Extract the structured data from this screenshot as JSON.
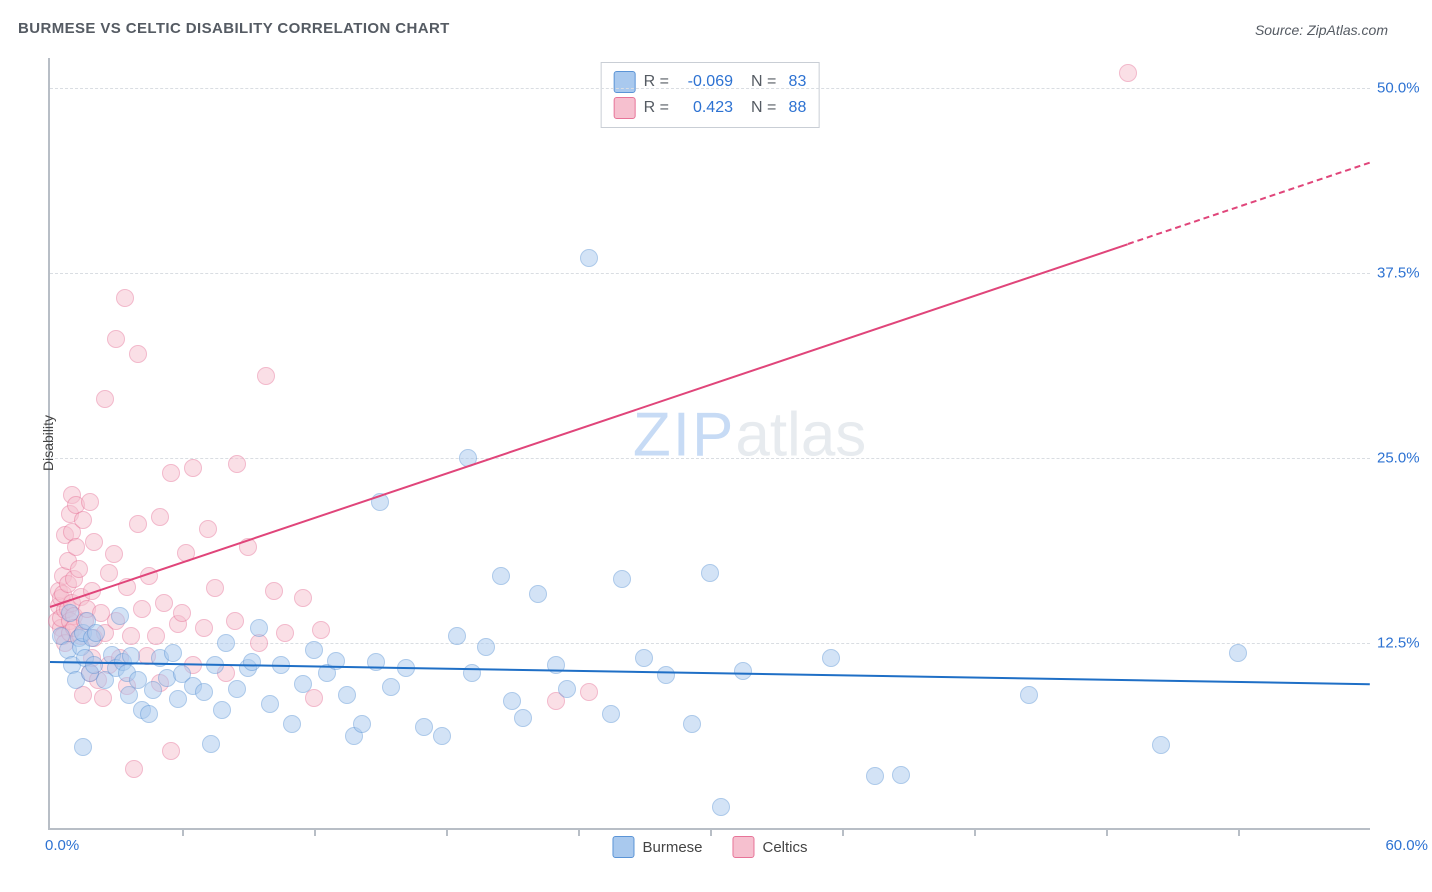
{
  "header": {
    "title": "BURMESE VS CELTIC DISABILITY CORRELATION CHART",
    "source": "Source: ZipAtlas.com"
  },
  "chart": {
    "type": "scatter",
    "y_axis_title": "Disability",
    "xlim": [
      0,
      60
    ],
    "ylim": [
      0,
      52
    ],
    "x_origin_label": "0.0%",
    "x_max_label": "60.0%",
    "x_ticks": [
      6,
      12,
      18,
      24,
      30,
      36,
      42,
      48,
      54
    ],
    "y_ticks": [
      {
        "value": 12.5,
        "label": "12.5%"
      },
      {
        "value": 25.0,
        "label": "25.0%"
      },
      {
        "value": 37.5,
        "label": "37.5%"
      },
      {
        "value": 50.0,
        "label": "50.0%"
      }
    ],
    "grid_color": "#d9dde2",
    "axis_color": "#b8bec6",
    "background_color": "#ffffff",
    "marker_radius": 9,
    "marker_opacity": 0.5,
    "series": {
      "burmese": {
        "label": "Burmese",
        "color_fill": "#a9c9ee",
        "color_stroke": "#5b94d6",
        "trend": {
          "y_at_x0": 11.3,
          "y_at_xmax": 9.8,
          "color": "#1f6fc6",
          "width": 2.5,
          "dashed_after_x": 60
        },
        "stats": {
          "R": "-0.069",
          "N": "83"
        },
        "points": [
          [
            0.5,
            13.0
          ],
          [
            0.8,
            12.0
          ],
          [
            0.9,
            14.5
          ],
          [
            1.0,
            11.0
          ],
          [
            1.2,
            10.0
          ],
          [
            1.3,
            12.8
          ],
          [
            1.4,
            12.2
          ],
          [
            1.5,
            13.2
          ],
          [
            1.5,
            5.5
          ],
          [
            1.6,
            11.5
          ],
          [
            1.7,
            14.0
          ],
          [
            1.8,
            10.5
          ],
          [
            1.9,
            12.8
          ],
          [
            2.0,
            11.0
          ],
          [
            2.1,
            13.2
          ],
          [
            2.5,
            10.0
          ],
          [
            2.8,
            11.7
          ],
          [
            3.0,
            10.8
          ],
          [
            3.2,
            14.3
          ],
          [
            3.3,
            11.2
          ],
          [
            3.5,
            10.5
          ],
          [
            3.6,
            9.0
          ],
          [
            3.7,
            11.6
          ],
          [
            4.0,
            10.0
          ],
          [
            4.2,
            8.0
          ],
          [
            4.5,
            7.7
          ],
          [
            4.7,
            9.3
          ],
          [
            5.0,
            11.5
          ],
          [
            5.3,
            10.1
          ],
          [
            5.6,
            11.8
          ],
          [
            5.8,
            8.7
          ],
          [
            6.0,
            10.4
          ],
          [
            6.5,
            9.6
          ],
          [
            7.0,
            9.2
          ],
          [
            7.3,
            5.7
          ],
          [
            7.5,
            11.0
          ],
          [
            7.8,
            8.0
          ],
          [
            8.0,
            12.5
          ],
          [
            8.5,
            9.4
          ],
          [
            9.0,
            10.8
          ],
          [
            9.2,
            11.2
          ],
          [
            9.5,
            13.5
          ],
          [
            10.0,
            8.4
          ],
          [
            10.5,
            11.0
          ],
          [
            11.0,
            7.0
          ],
          [
            11.5,
            9.7
          ],
          [
            12.0,
            12.0
          ],
          [
            12.6,
            10.5
          ],
          [
            13.0,
            11.3
          ],
          [
            13.5,
            9.0
          ],
          [
            13.8,
            6.2
          ],
          [
            14.2,
            7.0
          ],
          [
            14.8,
            11.2
          ],
          [
            15.0,
            22.0
          ],
          [
            15.5,
            9.5
          ],
          [
            16.2,
            10.8
          ],
          [
            17.0,
            6.8
          ],
          [
            17.8,
            6.2
          ],
          [
            18.5,
            13.0
          ],
          [
            19.0,
            25.0
          ],
          [
            19.2,
            10.5
          ],
          [
            19.8,
            12.2
          ],
          [
            20.5,
            17.0
          ],
          [
            21.0,
            8.6
          ],
          [
            21.5,
            7.4
          ],
          [
            22.2,
            15.8
          ],
          [
            23.0,
            11.0
          ],
          [
            23.5,
            9.4
          ],
          [
            24.5,
            38.5
          ],
          [
            25.5,
            7.7
          ],
          [
            26.0,
            16.8
          ],
          [
            27.0,
            11.5
          ],
          [
            28.0,
            10.3
          ],
          [
            29.2,
            7.0
          ],
          [
            30.0,
            17.2
          ],
          [
            30.5,
            1.4
          ],
          [
            31.5,
            10.6
          ],
          [
            35.5,
            11.5
          ],
          [
            37.5,
            3.5
          ],
          [
            38.7,
            3.6
          ],
          [
            44.5,
            9.0
          ],
          [
            50.5,
            5.6
          ],
          [
            54.0,
            11.8
          ]
        ]
      },
      "celtics": {
        "label": "Celtics",
        "color_fill": "#f6c0cf",
        "color_stroke": "#e77498",
        "trend": {
          "y_at_x0": 15.0,
          "y_at_xmax": 45.0,
          "color": "#e0457a",
          "width": 2,
          "dashed_after_x": 49
        },
        "stats": {
          "R": "0.423",
          "N": "88"
        },
        "points": [
          [
            0.3,
            14.0
          ],
          [
            0.4,
            15.0
          ],
          [
            0.4,
            16.0
          ],
          [
            0.5,
            15.5
          ],
          [
            0.5,
            13.5
          ],
          [
            0.5,
            14.2
          ],
          [
            0.6,
            13.0
          ],
          [
            0.6,
            17.0
          ],
          [
            0.6,
            15.8
          ],
          [
            0.7,
            14.7
          ],
          [
            0.7,
            12.5
          ],
          [
            0.7,
            19.8
          ],
          [
            0.8,
            14.8
          ],
          [
            0.8,
            16.5
          ],
          [
            0.8,
            18.0
          ],
          [
            0.9,
            14.0
          ],
          [
            0.9,
            21.2
          ],
          [
            0.9,
            13.2
          ],
          [
            1.0,
            15.2
          ],
          [
            1.0,
            20.0
          ],
          [
            1.0,
            22.5
          ],
          [
            1.1,
            14.3
          ],
          [
            1.1,
            13.5
          ],
          [
            1.1,
            16.8
          ],
          [
            1.2,
            21.8
          ],
          [
            1.2,
            19.0
          ],
          [
            1.3,
            17.5
          ],
          [
            1.4,
            13.0
          ],
          [
            1.4,
            15.6
          ],
          [
            1.5,
            9.0
          ],
          [
            1.5,
            20.8
          ],
          [
            1.6,
            14.0
          ],
          [
            1.7,
            14.8
          ],
          [
            1.8,
            10.5
          ],
          [
            1.8,
            22.0
          ],
          [
            1.9,
            11.5
          ],
          [
            1.9,
            16.0
          ],
          [
            2.0,
            12.8
          ],
          [
            2.0,
            19.3
          ],
          [
            2.2,
            10.0
          ],
          [
            2.3,
            14.5
          ],
          [
            2.4,
            8.8
          ],
          [
            2.5,
            13.2
          ],
          [
            2.5,
            29.0
          ],
          [
            2.7,
            11.0
          ],
          [
            2.7,
            17.2
          ],
          [
            2.9,
            18.5
          ],
          [
            3.0,
            33.0
          ],
          [
            3.0,
            14.0
          ],
          [
            3.2,
            11.5
          ],
          [
            3.4,
            35.8
          ],
          [
            3.5,
            16.3
          ],
          [
            3.5,
            9.6
          ],
          [
            3.7,
            13.0
          ],
          [
            3.8,
            4.0
          ],
          [
            4.0,
            20.5
          ],
          [
            4.0,
            32.0
          ],
          [
            4.2,
            14.8
          ],
          [
            4.4,
            11.6
          ],
          [
            4.5,
            17.0
          ],
          [
            4.8,
            13.0
          ],
          [
            5.0,
            21.0
          ],
          [
            5.0,
            9.8
          ],
          [
            5.2,
            15.2
          ],
          [
            5.5,
            5.2
          ],
          [
            5.5,
            24.0
          ],
          [
            5.8,
            13.8
          ],
          [
            6.0,
            14.5
          ],
          [
            6.2,
            18.6
          ],
          [
            6.5,
            24.3
          ],
          [
            6.5,
            11.0
          ],
          [
            7.0,
            13.5
          ],
          [
            7.2,
            20.2
          ],
          [
            7.5,
            16.2
          ],
          [
            8.0,
            10.5
          ],
          [
            8.4,
            14.0
          ],
          [
            8.5,
            24.6
          ],
          [
            9.0,
            19.0
          ],
          [
            9.5,
            12.5
          ],
          [
            9.8,
            30.5
          ],
          [
            10.2,
            16.0
          ],
          [
            10.7,
            13.2
          ],
          [
            11.5,
            15.5
          ],
          [
            12.0,
            8.8
          ],
          [
            12.3,
            13.4
          ],
          [
            23.0,
            8.6
          ],
          [
            24.5,
            9.2
          ],
          [
            49.0,
            51.0
          ]
        ]
      }
    },
    "watermark": {
      "zip": "ZIP",
      "atlas": "atlas"
    }
  }
}
